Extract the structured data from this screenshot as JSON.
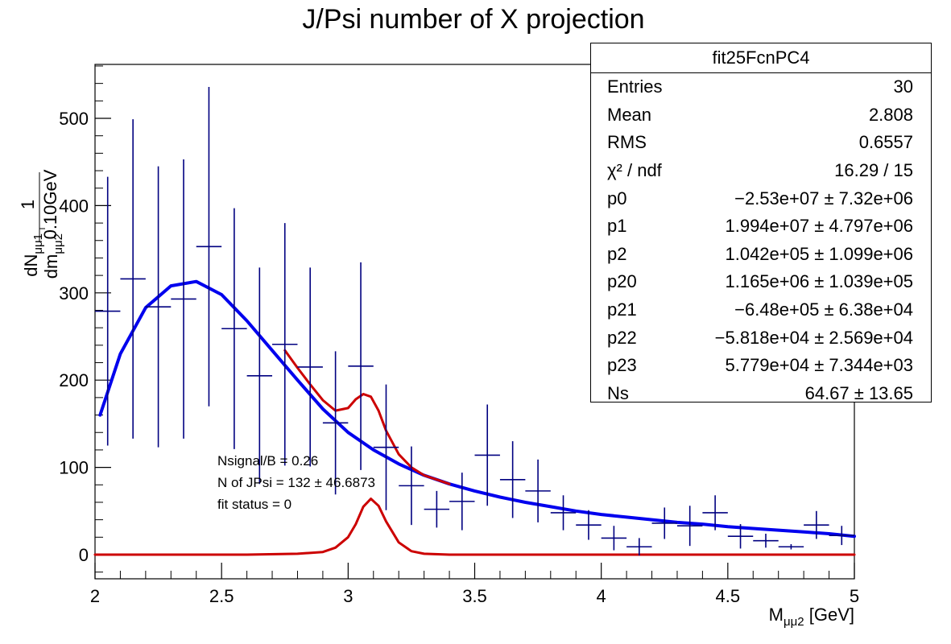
{
  "chart_data": {
    "type": "scatter",
    "title": "J/Psi number of X projection",
    "xlabel": "M_{μμ2} [GeV]",
    "ylabel": "dN_{μμ1}/dm_{μμ2} [1/0.10GeV]",
    "xlim": [
      2,
      5
    ],
    "ylim": [
      -20,
      565
    ],
    "x_ticks": [
      "2",
      "2.5",
      "3",
      "3.5",
      "4",
      "4.5",
      "5"
    ],
    "y_ticks": [
      "0",
      "100",
      "200",
      "300",
      "400",
      "500"
    ],
    "bin_width": 0.1,
    "points": {
      "x": [
        2.05,
        2.15,
        2.25,
        2.35,
        2.45,
        2.55,
        2.65,
        2.75,
        2.85,
        2.95,
        3.05,
        3.15,
        3.25,
        3.35,
        3.45,
        3.55,
        3.65,
        3.75,
        3.85,
        3.95,
        4.05,
        4.15,
        4.25,
        4.35,
        4.45,
        4.55,
        4.65,
        4.75,
        4.85,
        4.95
      ],
      "y": [
        279,
        316,
        284,
        293,
        353,
        259,
        205,
        241,
        215,
        151,
        216,
        123,
        79,
        52,
        61,
        114,
        86,
        73,
        48,
        34,
        19,
        9,
        36,
        33,
        48,
        21,
        16,
        9,
        34,
        22
      ],
      "err": [
        154,
        183,
        161,
        160,
        183,
        138,
        124,
        139,
        114,
        82,
        119,
        72,
        45,
        21,
        33,
        58,
        44,
        36,
        20,
        17,
        14,
        10,
        18,
        23,
        20,
        14,
        8,
        3,
        16,
        11
      ]
    },
    "series": [
      {
        "name": "background",
        "color": "#0000ee",
        "x": [
          2.02,
          2.1,
          2.2,
          2.3,
          2.4,
          2.5,
          2.6,
          2.7,
          2.8,
          2.9,
          3.0,
          3.1,
          3.2,
          3.3,
          3.4,
          3.5,
          3.6,
          3.7,
          3.8,
          3.9,
          4.0,
          4.1,
          4.2,
          4.3,
          4.4,
          4.5,
          4.6,
          4.7,
          4.8,
          4.9,
          5.0
        ],
        "y": [
          160,
          230,
          283,
          308,
          313,
          298,
          268,
          234,
          200,
          167,
          140,
          120,
          104,
          91,
          81,
          73,
          66,
          60,
          55,
          50,
          46,
          43,
          40,
          37,
          35,
          32,
          30,
          28,
          26,
          24,
          21
        ]
      },
      {
        "name": "total",
        "color": "#cc0000",
        "x": [
          2.75,
          2.8,
          2.85,
          2.9,
          2.95,
          3.0,
          3.03,
          3.06,
          3.09,
          3.12,
          3.15,
          3.2,
          3.25,
          3.3,
          3.35,
          3.4
        ],
        "y": [
          234,
          214,
          195,
          177,
          165,
          168,
          178,
          184,
          181,
          165,
          142,
          115,
          100,
          91,
          86,
          81
        ]
      },
      {
        "name": "signal",
        "color": "#cc0000",
        "x": [
          2.0,
          2.6,
          2.8,
          2.9,
          2.95,
          3.0,
          3.03,
          3.06,
          3.09,
          3.12,
          3.15,
          3.2,
          3.25,
          3.3,
          3.4,
          3.6,
          5.0
        ],
        "y": [
          0,
          0,
          1,
          3,
          8,
          20,
          35,
          55,
          64,
          56,
          38,
          14,
          4,
          1,
          0,
          0,
          0
        ]
      }
    ],
    "annotations": [
      "Nsignal/B = 0.26",
      "N of JPsi = 132 ± 46.6873",
      "fit status = 0"
    ],
    "stats": {
      "name": "fit25FcnPC4",
      "rows": [
        {
          "label": "Entries",
          "value": "30"
        },
        {
          "label": "Mean",
          "value": "2.808"
        },
        {
          "label": "RMS",
          "value": "0.6557"
        },
        {
          "label": "χ² / ndf",
          "value": "16.29 / 15"
        },
        {
          "label": "p0",
          "value": "−2.53e+07 ± 7.32e+06"
        },
        {
          "label": "p1",
          "value": "1.994e+07 ± 4.797e+06"
        },
        {
          "label": "p2",
          "value": "1.042e+05 ± 1.099e+06"
        },
        {
          "label": "p20",
          "value": "1.165e+06 ± 1.039e+05"
        },
        {
          "label": "p21",
          "value": "−6.48e+05 ± 6.38e+04"
        },
        {
          "label": "p22",
          "value": "−5.818e+04 ± 2.569e+04"
        },
        {
          "label": "p23",
          "value": "5.779e+04 ± 7.344e+03"
        },
        {
          "label": "Ns",
          "value": "64.67 ± 13.65"
        }
      ]
    }
  }
}
